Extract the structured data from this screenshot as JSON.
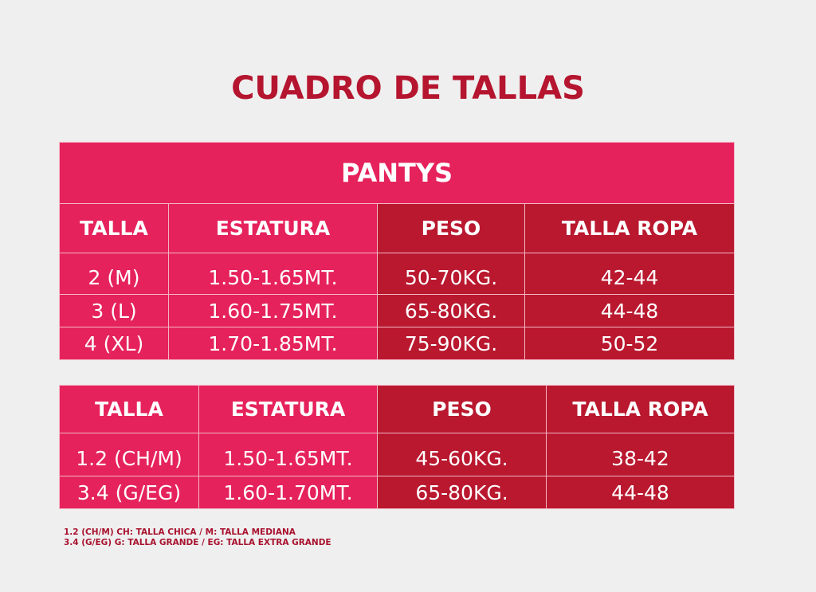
{
  "title": "CUADRO DE TALLAS",
  "colors": {
    "pink": "#e5225c",
    "dark_red": "#b9182f",
    "title": "#b5152f",
    "background": "#efefef"
  },
  "table1": {
    "caption": "PANTYS",
    "headers": [
      "TALLA",
      "ESTATURA",
      "PESO",
      "TALLA ROPA"
    ],
    "rows": [
      [
        "2 (M)",
        "1.50-1.65MT.",
        "50-70KG.",
        "42-44"
      ],
      [
        "3 (L)",
        "1.60-1.75MT.",
        "65-80KG.",
        "44-48"
      ],
      [
        "4 (XL)",
        "1.70-1.85MT.",
        "75-90KG.",
        "50-52"
      ]
    ]
  },
  "table2": {
    "headers": [
      "TALLA",
      "ESTATURA",
      "PESO",
      "TALLA ROPA"
    ],
    "rows": [
      [
        "1.2 (CH/M)",
        "1.50-1.65MT.",
        "45-60KG.",
        "38-42"
      ],
      [
        "3.4 (G/EG)",
        "1.60-1.70MT.",
        "65-80KG.",
        "44-48"
      ]
    ]
  },
  "notes": [
    "1.2 (CH/M) CH: TALLA CHICA / M: TALLA MEDIANA",
    "3.4 (G/EG) G: TALLA GRANDE / EG: TALLA EXTRA GRANDE"
  ]
}
